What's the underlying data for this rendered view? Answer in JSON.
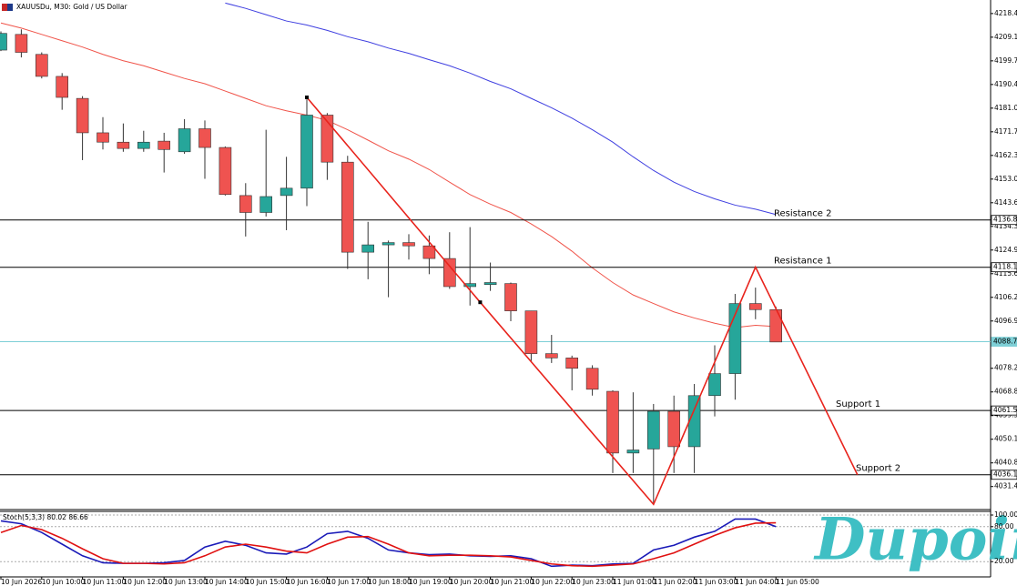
{
  "chart_data": {
    "type": "candlestick",
    "title": "XAUUSDu, M30:  Gold / US Dollar",
    "categories": [
      "10 Jun 2026",
      null,
      "10 Jun 10:00",
      null,
      "10 Jun 11:00",
      null,
      "10 Jun 12:00",
      null,
      "10 Jun 13:00",
      null,
      "10 Jun 14:00",
      null,
      "10 Jun 15:00",
      null,
      "10 Jun 16:00",
      null,
      "10 Jun 17:00",
      null,
      "10 Jun 18:00",
      null,
      "10 Jun 19:00",
      null,
      "10 Jun 20:00",
      null,
      "10 Jun 21:00",
      null,
      "10 Jun 22:00",
      null,
      "10 Jun 23:00",
      null,
      "11 Jun 01:00",
      null,
      "11 Jun 02:00",
      null,
      "11 Jun 03:00",
      null,
      "11 Jun 04:00",
      null,
      "11 Jun 05:00"
    ],
    "open": [
      4204.0,
      4210.2,
      4202.3,
      4193.6,
      4184.9,
      4171.3,
      4167.6,
      4165.1,
      4168.0,
      4163.8,
      4172.9,
      4165.5,
      4146.5,
      4139.8,
      4146.5,
      4149.4,
      4178.3,
      4159.7,
      4124.1,
      4127.0,
      4127.9,
      4126.6,
      4121.6,
      4110.5,
      4111.3,
      4111.7,
      4100.9,
      4084.0,
      4082.3,
      4078.2,
      4069.1,
      4044.7,
      4046.3,
      4061.2,
      4047.2,
      4067.4,
      4076.1,
      4103.8,
      4101.4
    ],
    "high": [
      4211.4,
      4212.2,
      4203.1,
      4194.9,
      4185.8,
      4177.5,
      4175.0,
      4172.1,
      4171.3,
      4176.7,
      4176.2,
      4165.9,
      4151.4,
      4172.5,
      4161.8,
      4184.5,
      4179.1,
      4162.2,
      4136.1,
      4128.7,
      4131.2,
      4130.7,
      4132.0,
      4134.0,
      4120.0,
      4112.1,
      4100.9,
      4091.4,
      4083.2,
      4079.4,
      4069.5,
      4068.7,
      4064.1,
      4067.4,
      4072.0,
      4087.3,
      4107.6,
      4110.1,
      4102.6
    ],
    "low": [
      4203.6,
      4201.1,
      4192.8,
      4180.4,
      4160.5,
      4164.7,
      4163.8,
      4163.8,
      4155.6,
      4163.0,
      4153.1,
      4146.5,
      4130.3,
      4138.2,
      4132.8,
      4142.3,
      4152.7,
      4117.5,
      4113.4,
      4106.3,
      4121.2,
      4115.4,
      4109.6,
      4103.0,
      4108.8,
      4096.8,
      4081.1,
      4080.3,
      4069.5,
      4067.4,
      4036.8,
      4036.8,
      4024.4,
      4036.8,
      4036.8,
      4059.2,
      4065.8,
      4097.6,
      4088.6
    ],
    "close": [
      4210.6,
      4203.1,
      4193.6,
      4185.3,
      4171.3,
      4167.6,
      4165.1,
      4167.6,
      4164.7,
      4172.9,
      4165.5,
      4146.9,
      4139.8,
      4146.1,
      4149.4,
      4178.3,
      4159.7,
      4124.1,
      4127.0,
      4127.9,
      4126.6,
      4121.6,
      4110.5,
      4111.7,
      4112.1,
      4100.9,
      4084.0,
      4082.3,
      4078.2,
      4069.9,
      4044.7,
      4045.9,
      4061.2,
      4047.2,
      4067.4,
      4076.1,
      4103.8,
      4101.4,
      4088.6
    ],
    "up_color": "#26a69a",
    "down_color": "#ef5350",
    "lines": [
      {
        "color": "#3f3fe0",
        "values": [
          null,
          null,
          null,
          null,
          null,
          null,
          null,
          null,
          null,
          null,
          null,
          4222.6,
          4220.5,
          4218.0,
          4215.5,
          4213.9,
          4211.8,
          4209.3,
          4207.3,
          4204.8,
          4202.7,
          4200.2,
          4197.8,
          4194.9,
          4191.6,
          4188.7,
          4184.9,
          4181.2,
          4177.1,
          4172.5,
          4167.6,
          4161.8,
          4156.4,
          4151.8,
          4148.1,
          4145.2,
          4142.7,
          4141.1,
          4139.0
        ]
      },
      {
        "color": "#f0544a",
        "values": [
          4214.7,
          4212.7,
          4210.2,
          4207.7,
          4205.2,
          4202.3,
          4199.8,
          4197.8,
          4195.3,
          4192.8,
          4190.7,
          4187.8,
          4184.9,
          4182.0,
          4180.0,
          4178.3,
          4176.2,
          4172.5,
          4168.4,
          4164.2,
          4160.9,
          4156.8,
          4151.8,
          4146.9,
          4143.1,
          4139.8,
          4135.3,
          4130.3,
          4124.5,
          4117.9,
          4112.1,
          4107.2,
          4103.8,
          4100.5,
          4098.1,
          4096.0,
          4094.3,
          4095.2,
          4094.7
        ]
      }
    ],
    "levels": [
      {
        "name": "Resistance 2",
        "value": 4136.84,
        "color": "#000000"
      },
      {
        "name": "Resistance 1",
        "value": 4118.15,
        "color": "#000000"
      },
      {
        "value": 4088.7,
        "value_label": "4088.70",
        "color": "#7ecfd6"
      },
      {
        "name": "Support 1",
        "value": 4061.51,
        "color": "#000000"
      },
      {
        "name": "Support 2",
        "value": 4036.11,
        "color": "#000000"
      }
    ],
    "zigzag": {
      "color": "#e8231c",
      "x": [
        15,
        23.5,
        32,
        37,
        42
      ],
      "values": [
        4185.3,
        4104.3,
        4024.4,
        4118.2,
        4036.1
      ]
    },
    "ylim": [
      4022.35,
      4223.8
    ],
    "yticks": [
      {
        "value": 4218.45,
        "label": "4218.45"
      },
      {
        "value": 4209.1,
        "label": "4209.10"
      },
      {
        "value": 4199.75,
        "label": "4199.75"
      },
      {
        "value": 4190.4,
        "label": "4190.40"
      },
      {
        "value": 4181.05,
        "label": "4181.05"
      },
      {
        "value": 4171.7,
        "label": "4171.70"
      },
      {
        "value": 4162.35,
        "label": "4162.35"
      },
      {
        "value": 4153.0,
        "label": "4153.00"
      },
      {
        "value": 4143.65,
        "label": "4143.65"
      },
      {
        "value": 4134.3,
        "label": "4134.30"
      },
      {
        "value": 4124.95,
        "label": "4124.95"
      },
      {
        "value": 4115.6,
        "label": "4115.60"
      },
      {
        "value": 4106.25,
        "label": "4106.25"
      },
      {
        "value": 4096.9,
        "label": "4096.90"
      },
      {
        "value": 4078.2,
        "label": "4078.20"
      },
      {
        "value": 4068.85,
        "label": "4068.85"
      },
      {
        "value": 4059.5,
        "label": "4059.50"
      },
      {
        "value": 4050.15,
        "label": "4050.15"
      },
      {
        "value": 4040.8,
        "label": "4040.80"
      },
      {
        "value": 4031.45,
        "label": "4031.45"
      }
    ],
    "stochastic": {
      "title": "Stoch(5,3,3) 80.02 86.66",
      "series": [
        {
          "color": "#1a1ab8",
          "values": [
            90,
            85,
            70,
            50,
            30,
            18,
            17,
            17,
            18,
            22,
            45,
            55,
            48,
            35,
            33,
            45,
            68,
            72,
            60,
            40,
            35,
            32,
            33,
            30,
            29,
            30,
            25,
            12,
            14,
            13,
            16,
            17,
            40,
            48,
            62,
            72,
            93,
            93,
            80.02
          ]
        },
        {
          "color": "#e01010",
          "values": [
            70,
            82,
            75,
            60,
            42,
            25,
            17,
            17,
            16,
            18,
            30,
            45,
            50,
            45,
            38,
            35,
            50,
            62,
            63,
            50,
            35,
            30,
            31,
            31,
            30,
            28,
            22,
            16,
            13,
            12,
            14,
            16,
            25,
            35,
            50,
            65,
            78,
            86,
            86.66
          ]
        }
      ],
      "ylim": [
        0,
        100
      ],
      "yticks": [
        {
          "value": 20,
          "label": "20.00"
        },
        {
          "value": 80,
          "label": "80.00"
        },
        {
          "value": 100,
          "label": "100.00"
        }
      ]
    },
    "watermark": "Dupoin"
  }
}
